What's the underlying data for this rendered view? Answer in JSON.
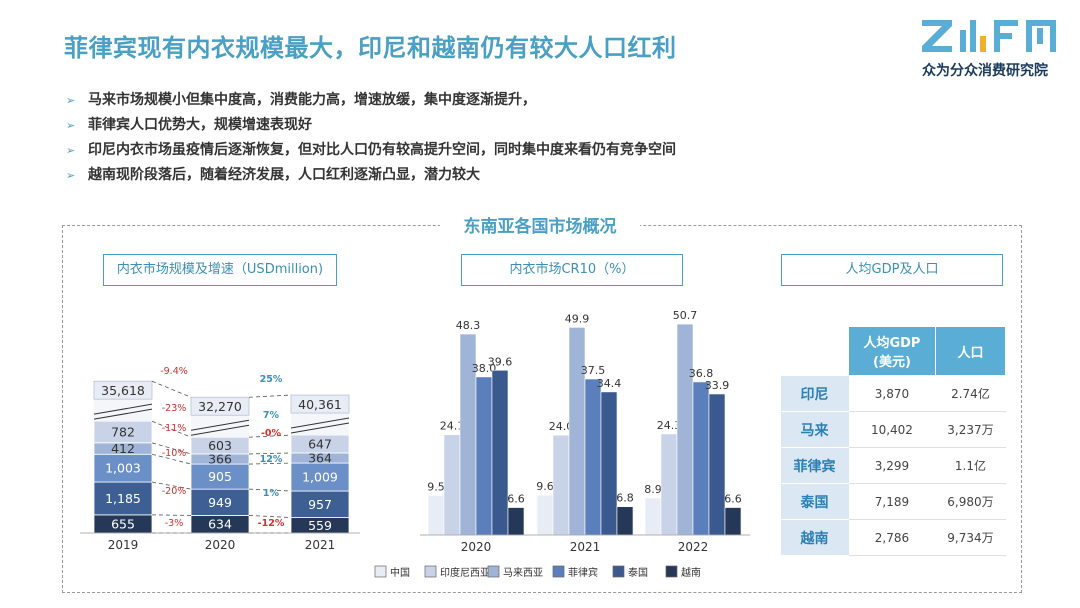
{
  "title": "菲律宾现有内衣规模最大，印尼和越南仍有较大人口红利",
  "logo": {
    "mark": "ZHFH",
    "name": "众为分众消费研究院"
  },
  "bullets": [
    "马来市场规模小但集中度高，消费能力高，增速放缓，集中度逐渐提升，",
    "菲律宾人口优势大，规模增速表现好",
    "印尼内衣市场虽疫情后逐渐恢复，但对比人口仍有较高提升空间，同时集中度来看仍有竞争空间",
    "越南现阶段落后，随着经济发展，人口红利逐渐凸显，潜力较大"
  ],
  "section_title": "东南亚各国市场概况",
  "chart_data": [
    {
      "type": "bar",
      "stacked": true,
      "title": "内衣市场规模及增速（USDmillion)",
      "categories": [
        "2019",
        "2020",
        "2021"
      ],
      "series": [
        {
          "values": [
            655,
            634,
            559
          ],
          "color": "#253858"
        },
        {
          "values": [
            1185,
            949,
            957
          ],
          "color": "#3d5f94"
        },
        {
          "values": [
            1003,
            905,
            1009
          ],
          "color": "#6b8fc7"
        },
        {
          "values": [
            412,
            366,
            364
          ],
          "color": "#9fb4d6"
        },
        {
          "values": [
            782,
            603,
            647
          ],
          "color": "#c8d3e8"
        },
        {
          "values": [
            35618,
            32270,
            40361
          ],
          "color": "#e8ecf4",
          "broken_axis": true
        }
      ],
      "growth_2020": [
        "-3%",
        "-20%",
        "-10%",
        "-11%",
        "-23%",
        "-9.4%"
      ],
      "growth_2021": [
        "-12%",
        "1%",
        "12%",
        "-0%",
        "7%",
        "25%"
      ]
    },
    {
      "type": "bar",
      "title": "内衣市场CR10（%）",
      "categories": [
        "2020",
        "2021",
        "2022"
      ],
      "ylim": [
        0,
        55
      ],
      "series": [
        {
          "name": "中国",
          "values": [
            9.5,
            9.6,
            8.9
          ],
          "color": "#e8ecf4"
        },
        {
          "name": "印度尼西亚",
          "values": [
            24.1,
            24.0,
            24.3
          ],
          "color": "#c8d3e8"
        },
        {
          "name": "马来西亚",
          "values": [
            48.3,
            49.9,
            50.7
          ],
          "color": "#9fb4d6"
        },
        {
          "name": "菲律宾",
          "values": [
            38.0,
            37.5,
            36.8
          ],
          "color": "#5b7fba"
        },
        {
          "name": "泰国",
          "values": [
            39.6,
            34.4,
            33.9
          ],
          "color": "#3a5a8f"
        },
        {
          "name": "越南",
          "values": [
            6.6,
            6.8,
            6.6
          ],
          "color": "#253858"
        }
      ]
    },
    {
      "type": "table",
      "title": "人均GDP及人口",
      "columns": [
        "人均GDP\n(美元)",
        "人口"
      ],
      "rows": [
        {
          "country": "印尼",
          "gdp": "3,870",
          "pop": "2.74亿"
        },
        {
          "country": "马来",
          "gdp": "10,402",
          "pop": "3,237万"
        },
        {
          "country": "菲律宾",
          "gdp": "3,299",
          "pop": "1.1亿"
        },
        {
          "country": "泰国",
          "gdp": "7,189",
          "pop": "6,980万"
        },
        {
          "country": "越南",
          "gdp": "2,786",
          "pop": "9,734万"
        }
      ]
    }
  ]
}
